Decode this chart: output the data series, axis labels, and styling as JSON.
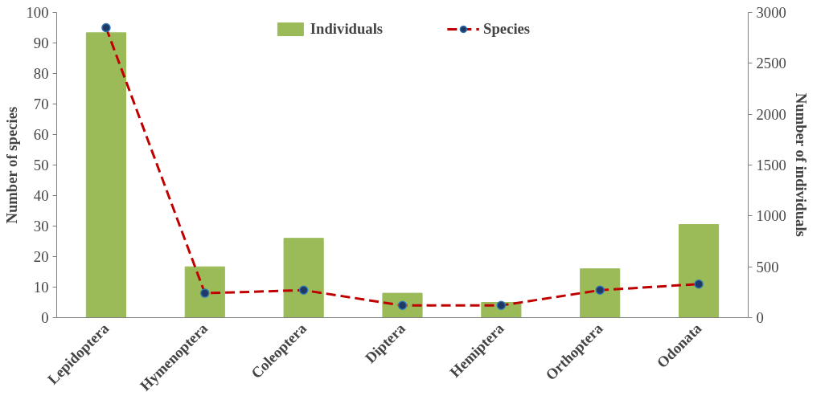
{
  "chart_data": {
    "type": "bar",
    "categories": [
      "Lepidoptera",
      "Hymenoptera",
      "Coleoptera",
      "Diptera",
      "Hemiptera",
      "Orthoptera",
      "Odonata"
    ],
    "ylabel": "Number of species",
    "y2label": "Number of individuals",
    "ylim": [
      0,
      100
    ],
    "yticks": [
      0,
      10,
      20,
      30,
      40,
      50,
      60,
      70,
      80,
      90,
      100
    ],
    "y2lim": [
      0,
      3000
    ],
    "y2ticks": [
      0,
      500,
      1000,
      1500,
      2000,
      2500,
      3000
    ],
    "series": [
      {
        "name": "Individuals",
        "axis": "y2",
        "color": "#9bbb59",
        "values": [
          2800,
          500,
          780,
          240,
          150,
          480,
          915
        ]
      },
      {
        "name": "Species",
        "type": "line",
        "axis": "y",
        "color": "#c00000",
        "marker": "circle",
        "line_style": "dashed",
        "values": [
          95,
          8,
          9,
          4,
          4,
          9,
          11
        ]
      }
    ],
    "grid": false,
    "legend": "top"
  }
}
